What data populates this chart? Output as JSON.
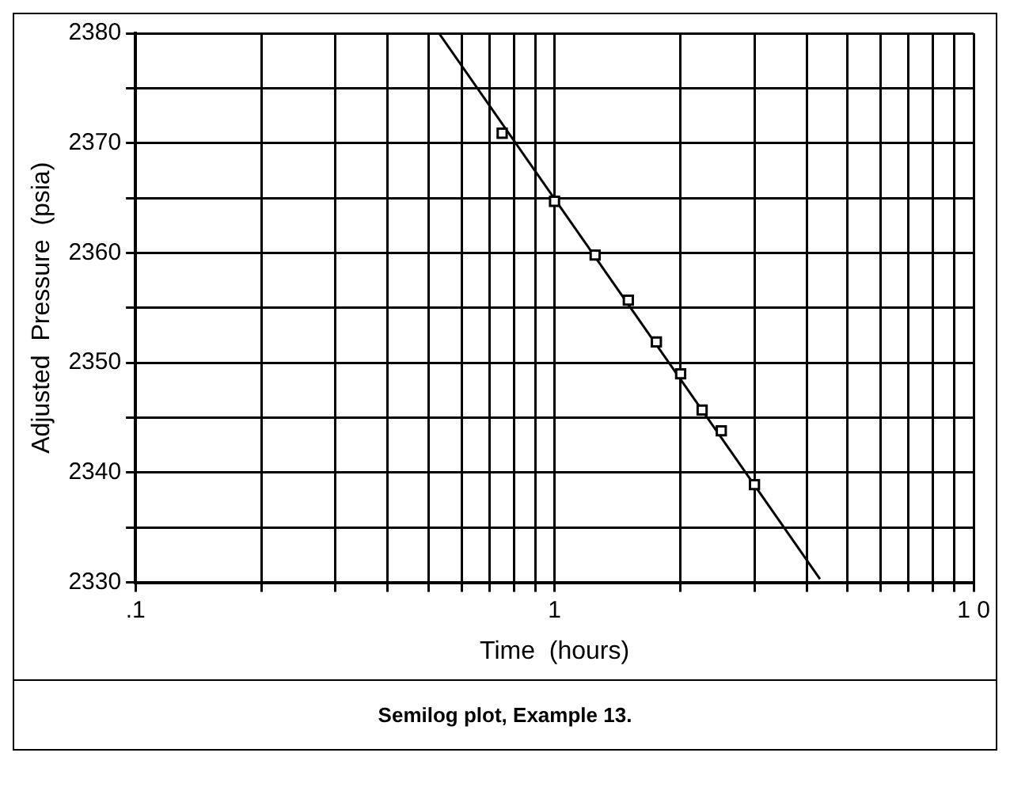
{
  "chart_data": {
    "type": "scatter",
    "xlabel": "Time  (hours)",
    "ylabel": "Adjusted  Pressure  (psia)",
    "annotations": [
      "Semilog plot, Example 13."
    ],
    "log": "x",
    "grid": true,
    "legend": false,
    "xlim": [
      0.1,
      10
    ],
    "ylim": [
      2330,
      2380
    ],
    "xticks": [
      {
        "value": 0.1,
        "label": ".1"
      },
      {
        "value": 0.2,
        "label": null
      },
      {
        "value": 0.3,
        "label": null
      },
      {
        "value": 0.4,
        "label": null
      },
      {
        "value": 0.5,
        "label": null
      },
      {
        "value": 0.6,
        "label": null
      },
      {
        "value": 0.7,
        "label": null
      },
      {
        "value": 0.8,
        "label": null
      },
      {
        "value": 0.9,
        "label": null
      },
      1,
      {
        "value": 2,
        "label": null
      },
      {
        "value": 3,
        "label": null
      },
      {
        "value": 4,
        "label": null
      },
      {
        "value": 5,
        "label": null
      },
      {
        "value": 6,
        "label": null
      },
      {
        "value": 7,
        "label": null
      },
      {
        "value": 8,
        "label": null
      },
      {
        "value": 9,
        "label": null
      },
      {
        "value": 10,
        "label": "1 0"
      }
    ],
    "yticks": [
      2330,
      {
        "value": 2335,
        "label": null
      },
      2340,
      {
        "value": 2345,
        "label": null
      },
      2350,
      {
        "value": 2355,
        "label": null
      },
      2360,
      {
        "value": 2365,
        "label": null
      },
      2370,
      {
        "value": 2375,
        "label": null
      },
      2380
    ],
    "series": [
      {
        "marker": "square",
        "color": "#000000",
        "x": [
          0.75,
          1,
          1.25,
          1.5,
          1.75,
          2,
          2.25,
          2.5,
          3
        ],
        "values": [
          2370.9,
          2364.7,
          2359.8,
          2355.7,
          2351.9,
          2349.0,
          2345.7,
          2343.8,
          2338.9
        ]
      },
      {
        "type": "line",
        "marker": "none",
        "color": "#000000",
        "x": [
          0.53,
          4.3
        ],
        "values": [
          2380,
          2330.3
        ]
      }
    ]
  }
}
